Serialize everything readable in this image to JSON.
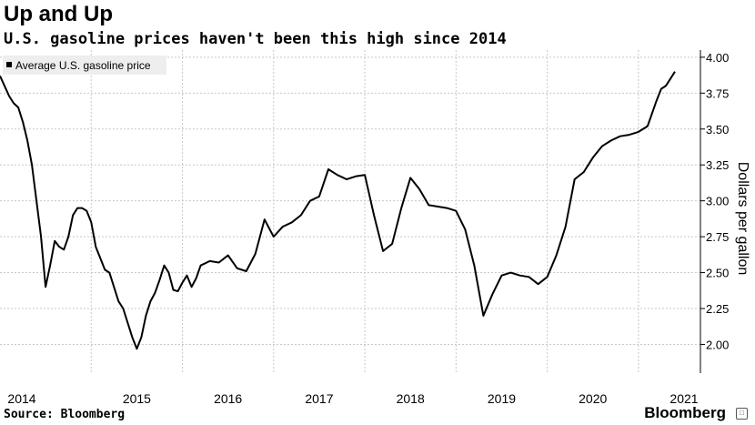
{
  "header": {
    "title": "Up and Up",
    "subtitle": "U.S. gasoline prices haven't been this high since 2014"
  },
  "footer": {
    "source": "Source: Bloomberg",
    "brand": "Bloomberg"
  },
  "colors": {
    "line": "#000000",
    "grid": "#c8c8c8",
    "legend_bg": "#eeeeee"
  },
  "chart_data": {
    "type": "line",
    "title": "Up and Up",
    "subtitle": "U.S. gasoline prices haven't been this high since 2014",
    "xlabel": "",
    "ylabel": "Dollars per gallon",
    "ylim": [
      1.8,
      4.05
    ],
    "y_ticks": [
      2.0,
      2.25,
      2.5,
      2.75,
      3.0,
      3.25,
      3.5,
      3.75,
      4.0
    ],
    "y_tick_labels": [
      "2.00",
      "2.25",
      "2.50",
      "2.75",
      "3.00",
      "3.25",
      "3.50",
      "3.75",
      "4.00"
    ],
    "x_range": [
      2014.0,
      2021.5
    ],
    "x_tick_labels": [
      "2014",
      "2015",
      "2016",
      "2017",
      "2018",
      "2019",
      "2020",
      "2021"
    ],
    "grid": true,
    "legend_position": "top-left",
    "series": [
      {
        "name": "Average U.S. gasoline price",
        "x": [
          2014.0,
          2014.05,
          2014.1,
          2014.15,
          2014.2,
          2014.25,
          2014.3,
          2014.35,
          2014.4,
          2014.45,
          2014.5,
          2014.55,
          2014.6,
          2014.65,
          2014.7,
          2014.75,
          2014.8,
          2014.85,
          2014.9,
          2014.95,
          2015.0,
          2015.05,
          2015.1,
          2015.15,
          2015.2,
          2015.25,
          2015.3,
          2015.35,
          2015.4,
          2015.45,
          2015.5,
          2015.55,
          2015.6,
          2015.65,
          2015.7,
          2015.75,
          2015.8,
          2015.85,
          2015.9,
          2015.95,
          2016.0,
          2016.05,
          2016.1,
          2016.15,
          2016.2,
          2016.3,
          2016.4,
          2016.5,
          2016.6,
          2016.7,
          2016.8,
          2016.9,
          2017.0,
          2017.1,
          2017.2,
          2017.3,
          2017.4,
          2017.5,
          2017.6,
          2017.7,
          2017.8,
          2017.9,
          2018.0,
          2018.1,
          2018.2,
          2018.3,
          2018.4,
          2018.5,
          2018.6,
          2018.7,
          2018.8,
          2018.9,
          2019.0,
          2019.1,
          2019.2,
          2019.3,
          2019.4,
          2019.5,
          2019.6,
          2019.7,
          2019.8,
          2019.9,
          2020.0,
          2020.1,
          2020.2,
          2020.3,
          2020.4,
          2020.5,
          2020.6,
          2020.7,
          2020.8,
          2020.9,
          2021.0,
          2021.1,
          2021.2,
          2021.25,
          2021.3,
          2021.35,
          2021.4
        ],
        "y": [
          3.87,
          3.8,
          3.73,
          3.68,
          3.65,
          3.55,
          3.42,
          3.25,
          3.0,
          2.75,
          2.4,
          2.55,
          2.72,
          2.68,
          2.66,
          2.75,
          2.9,
          2.95,
          2.95,
          2.93,
          2.85,
          2.68,
          2.6,
          2.52,
          2.5,
          2.4,
          2.3,
          2.25,
          2.15,
          2.05,
          1.97,
          2.05,
          2.2,
          2.3,
          2.36,
          2.45,
          2.55,
          2.5,
          2.38,
          2.37,
          2.43,
          2.48,
          2.4,
          2.46,
          2.55,
          2.58,
          2.57,
          2.62,
          2.53,
          2.51,
          2.63,
          2.87,
          2.75,
          2.82,
          2.85,
          2.9,
          3.0,
          3.03,
          3.22,
          3.18,
          3.15,
          3.17,
          3.18,
          2.9,
          2.65,
          2.7,
          2.95,
          3.16,
          3.08,
          2.97,
          2.96,
          2.95,
          2.93,
          2.8,
          2.55,
          2.2,
          2.35,
          2.48,
          2.5,
          2.48,
          2.47,
          2.42,
          2.47,
          2.62,
          2.82,
          3.15,
          3.2,
          3.3,
          3.38,
          3.42,
          3.45,
          3.46,
          3.48,
          3.52,
          3.7,
          3.78,
          3.8,
          3.85,
          3.9
        ]
      }
    ]
  }
}
